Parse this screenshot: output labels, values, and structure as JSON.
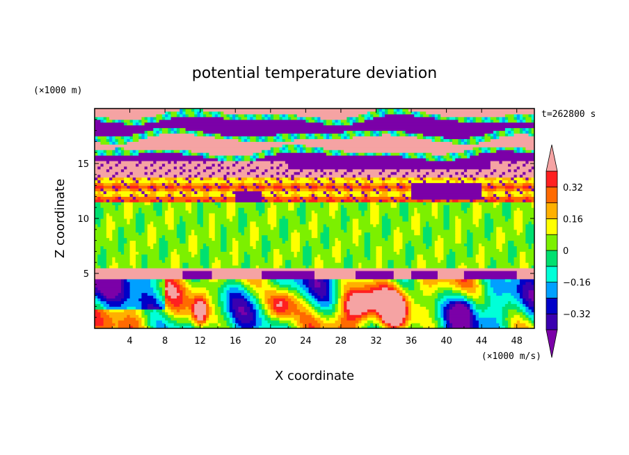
{
  "chart_data": {
    "type": "heatmap",
    "title": "potential temperature deviation",
    "xlabel": "X coordinate",
    "ylabel": "Z coordinate",
    "x_unit": "(×1000 m/s)",
    "y_unit": "(×1000 m)",
    "time_label": "t=262800 s",
    "xlim": [
      0,
      50
    ],
    "ylim": [
      0,
      20
    ],
    "x_ticks": [
      4,
      8,
      12,
      16,
      20,
      24,
      28,
      32,
      36,
      40,
      44,
      48
    ],
    "y_ticks": [
      5,
      10,
      15
    ],
    "colorbar": {
      "levels": [
        -0.4,
        -0.32,
        -0.24,
        -0.16,
        -0.08,
        0,
        0.08,
        0.16,
        0.24,
        0.32,
        0.4
      ],
      "labels": [
        {
          "value": 0.32,
          "text": "0.32"
        },
        {
          "value": 0.16,
          "text": "0.16"
        },
        {
          "value": 0,
          "text": "0"
        },
        {
          "value": -0.16,
          "text": "−0.16"
        },
        {
          "value": -0.32,
          "text": "−0.32"
        }
      ],
      "colors": [
        "#7b00a8",
        "#3a00b0",
        "#0000c8",
        "#00a0ff",
        "#00ffd8",
        "#00e070",
        "#7cf000",
        "#ffff00",
        "#ffb000",
        "#ff6a00",
        "#ff2020",
        "#f5a3a3"
      ],
      "extend": "both"
    },
    "layers": [
      {
        "z_range": [
          0,
          4.5
        ],
        "pattern": "mixed convective eddies, values -0.4 to 0.4"
      },
      {
        "z_range": [
          4.5,
          5.5
        ],
        "value": 0.4
      },
      {
        "z_range": [
          5.5,
          11.5
        ],
        "value": 0.04
      },
      {
        "z_range": [
          11.5,
          13.8
        ],
        "value": 0.25
      },
      {
        "z_range": [
          13.8,
          15.3
        ],
        "pattern": "scattered negative cells in warm layer"
      },
      {
        "z_range": [
          15.3,
          20
        ],
        "pattern": "alternating bands of 0.4 and -0.4"
      }
    ]
  }
}
